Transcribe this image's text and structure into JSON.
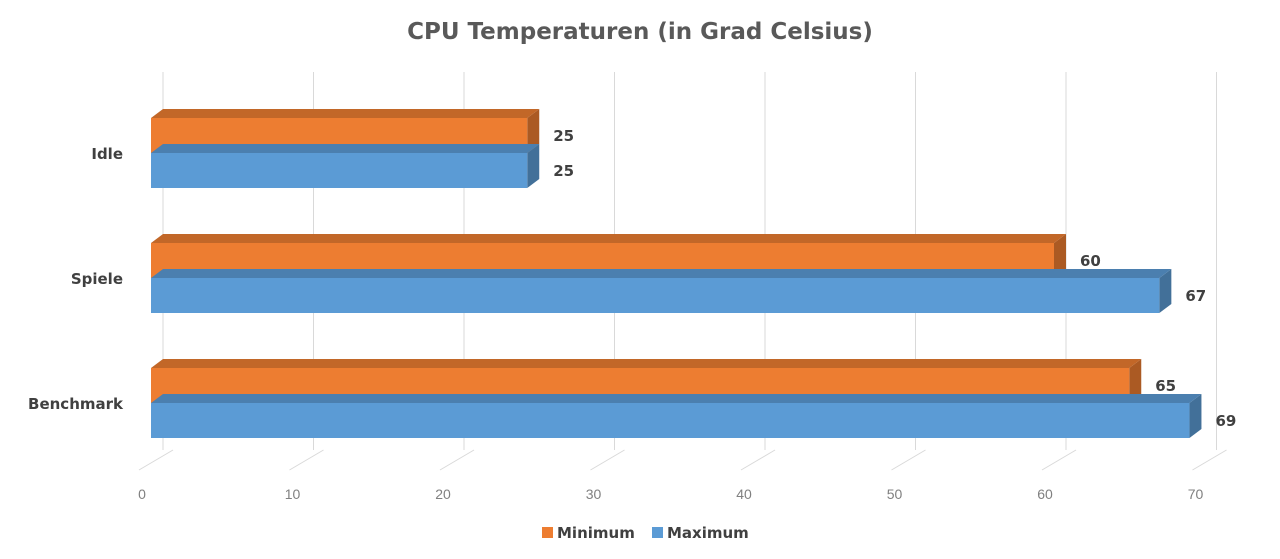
{
  "chart_data": {
    "type": "bar",
    "orientation": "horizontal",
    "three_d": true,
    "title": "CPU Temperaturen (in Grad Celsius)",
    "categories": [
      "Idle",
      "Spiele",
      "Benchmark"
    ],
    "series": [
      {
        "name": "Minimum",
        "values": [
          25,
          60,
          65
        ],
        "color": "#ED7D31"
      },
      {
        "name": "Maximum",
        "values": [
          25,
          67,
          69
        ],
        "color": "#5B9BD5"
      }
    ],
    "xlim": [
      0,
      70
    ],
    "x_ticks": [
      "0",
      "10",
      "20",
      "30",
      "40",
      "50",
      "60",
      "70"
    ],
    "grid": true,
    "legend_position": "bottom",
    "data_labels": true
  }
}
